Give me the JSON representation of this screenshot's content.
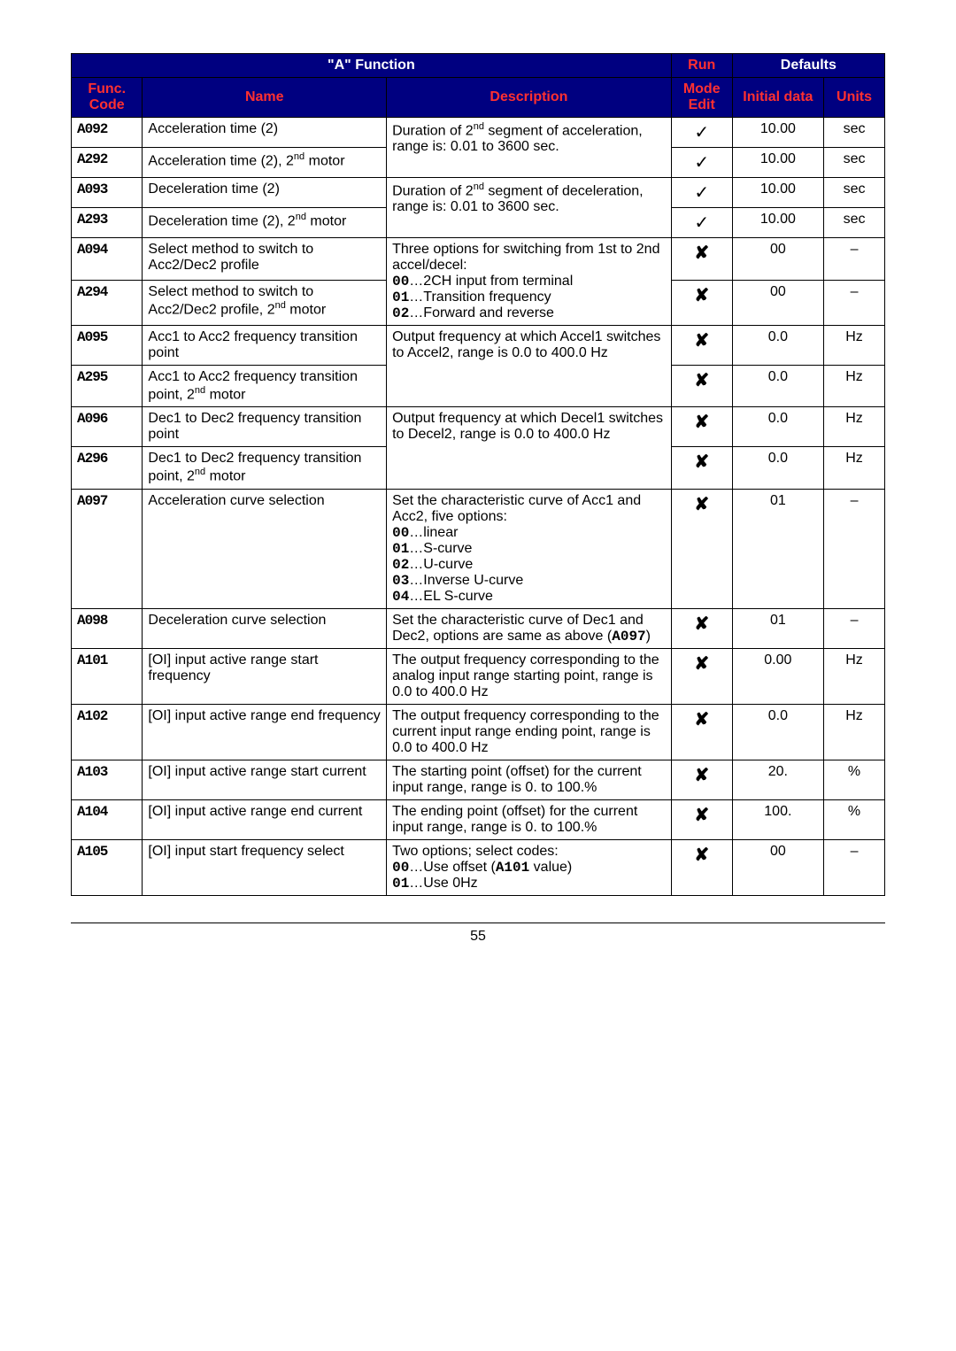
{
  "page_number": "55",
  "header": {
    "group": "\"A\" Function",
    "run": "Run",
    "defaults": "Defaults",
    "func_code": "Func. Code",
    "name": "Name",
    "desc": "Description",
    "mode_edit": "Mode Edit",
    "initial": "Initial data",
    "units": "Units"
  },
  "marks": {
    "check": "✓",
    "cross": "✘",
    "dash": "–"
  },
  "rows": [
    {
      "code": "A092",
      "name_html": "Acceleration time (2)",
      "desc_html": "Duration of 2<sup>nd</sup> segment of acceleration, range is: 0.01 to 3600 sec.",
      "mode": "check",
      "init": "10.00",
      "units": "sec",
      "rowspan_desc": 2
    },
    {
      "code": "A292",
      "name_html": "Acceleration time (2), 2<sup>nd</sup> motor",
      "desc_html": null,
      "mode": "check",
      "init": "10.00",
      "units": "sec",
      "dashed": true
    },
    {
      "code": "A093",
      "name_html": "Deceleration time (2)",
      "desc_html": "Duration of 2<sup>nd</sup> segment of deceleration, range is: 0.01 to 3600 sec.",
      "mode": "check",
      "init": "10.00",
      "units": "sec",
      "rowspan_desc": 2
    },
    {
      "code": "A293",
      "name_html": "Deceleration time (2), 2<sup>nd</sup> motor",
      "desc_html": null,
      "mode": "check",
      "init": "10.00",
      "units": "sec",
      "dashed": true
    },
    {
      "code": "A094",
      "name_html": "Select method to switch to Acc2/Dec2 profile",
      "desc_html": "Three options for switching from 1st to 2nd accel/decel:<br><span class=\"incode\">00</span>…2CH input from terminal<br><span class=\"incode\">01</span>…Transition frequency<br><span class=\"incode\">02</span>…Forward and reverse",
      "mode": "cross",
      "init": "00",
      "units": "dash",
      "rowspan_desc": 2
    },
    {
      "code": "A294",
      "name_html": "Select method to switch to Acc2/Dec2 profile, 2<sup>nd</sup> motor",
      "desc_html": null,
      "mode": "cross",
      "init": "00",
      "units": "dash",
      "dashed": true
    },
    {
      "code": "A095",
      "name_html": "Acc1 to Acc2 frequency transition point",
      "desc_html": "Output frequency at which Accel1 switches to Accel2, range is 0.0 to 400.0 Hz",
      "mode": "cross",
      "init": "0.0",
      "units": "Hz",
      "rowspan_desc": 2
    },
    {
      "code": "A295",
      "name_html": "Acc1 to Acc2 frequency transition point, 2<sup>nd</sup> motor",
      "desc_html": null,
      "mode": "cross",
      "init": "0.0",
      "units": "Hz",
      "dashed": true
    },
    {
      "code": "A096",
      "name_html": "Dec1 to Dec2 frequency transition point",
      "desc_html": "Output frequency at which Decel1 switches to Decel2, range is 0.0 to 400.0 Hz",
      "mode": "cross",
      "init": "0.0",
      "units": "Hz",
      "rowspan_desc": 2
    },
    {
      "code": "A296",
      "name_html": "Dec1 to Dec2 frequency transition point, 2<sup>nd</sup> motor",
      "desc_html": null,
      "mode": "cross",
      "init": "0.0",
      "units": "Hz",
      "dashed": true
    },
    {
      "code": "A097",
      "name_html": "Acceleration curve selection",
      "desc_html": "Set the characteristic curve of Acc1 and Acc2, five options:<br><span class=\"incode\">00</span>…linear<br><span class=\"incode\">01</span>…S-curve<br><span class=\"incode\">02</span>…U-curve<br><span class=\"incode\">03</span>…Inverse U-curve<br><span class=\"incode\">04</span>…EL S-curve",
      "mode": "cross",
      "init": "01",
      "units": "dash"
    },
    {
      "code": "A098",
      "name_html": "Deceleration curve selection",
      "desc_html": "Set the characteristic curve of Dec1 and Dec2, options are same as above (<span class=\"incode\">A097</span>)",
      "mode": "cross",
      "init": "01",
      "units": "dash"
    },
    {
      "code": "A101",
      "name_html": "[OI] input active range start frequency",
      "desc_html": "The output frequency corresponding to the analog input range starting point, range is 0.0 to 400.0 Hz",
      "mode": "cross",
      "init": "0.00",
      "units": "Hz"
    },
    {
      "code": "A102",
      "name_html": "[OI] input active range end frequency",
      "desc_html": "The output frequency corresponding to the current input range ending point, range is 0.0 to 400.0 Hz",
      "mode": "cross",
      "init": "0.0",
      "units": "Hz"
    },
    {
      "code": "A103",
      "name_html": "[OI] input active range start current",
      "desc_html": "The starting point (offset) for the current input range, range is 0. to 100.%",
      "mode": "cross",
      "init": "20.",
      "units": "%"
    },
    {
      "code": "A104",
      "name_html": "[OI] input active range end current",
      "desc_html": "The ending point (offset) for the current input range, range is 0. to 100.%",
      "mode": "cross",
      "init": "100.",
      "units": "%"
    },
    {
      "code": "A105",
      "name_html": "[OI] input start frequency select",
      "desc_html": "Two options; select codes:<br><span class=\"incode\">00</span>…Use offset (<span class=\"incode\">A101</span> value)<br><span class=\"incode\">01</span>…Use 0Hz",
      "mode": "cross",
      "init": "00",
      "units": "dash"
    }
  ],
  "col_widths": [
    "70px",
    "240px",
    "280px",
    "60px",
    "90px",
    "60px"
  ]
}
